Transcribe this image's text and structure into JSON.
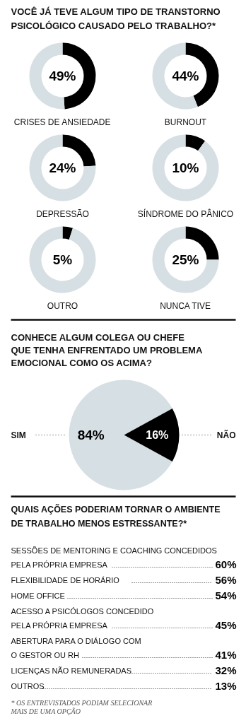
{
  "chart_data": [
    {
      "type": "other",
      "title": "VOCÊ JÁ TEVE ALGUM TIPO DE TRANSTORNO\nPSICOLÓGICO CAUSADO PELO TRABALHO?*"
    },
    {
      "type": "donut",
      "title": "CRISES DE ANSIEDADE",
      "categories": [
        null,
        null
      ],
      "values": [
        49,
        51
      ],
      "colors": [
        "#000000",
        "#d6dfe3"
      ],
      "annotations": [
        "49%"
      ]
    },
    {
      "type": "donut",
      "title": "BURNOUT",
      "categories": [
        null,
        null
      ],
      "values": [
        44,
        56
      ],
      "colors": [
        "#000000",
        "#d6dfe3"
      ],
      "annotations": [
        "44%"
      ]
    },
    {
      "type": "donut",
      "title": "DEPRESSÃO",
      "categories": [
        null,
        null
      ],
      "values": [
        24,
        76
      ],
      "colors": [
        "#000000",
        "#d6dfe3"
      ],
      "annotations": [
        "24%"
      ]
    },
    {
      "type": "donut",
      "title": "SÍNDROME DO PÂNICO",
      "categories": [
        null,
        null
      ],
      "values": [
        10,
        90
      ],
      "colors": [
        "#000000",
        "#d6dfe3"
      ],
      "annotations": [
        "10%"
      ]
    },
    {
      "type": "donut",
      "title": "OUTRO",
      "categories": [
        null,
        null
      ],
      "values": [
        5,
        95
      ],
      "colors": [
        "#000000",
        "#d6dfe3"
      ],
      "annotations": [
        "5%"
      ]
    },
    {
      "type": "donut",
      "title": "NUNCA TIVE",
      "categories": [
        null,
        null
      ],
      "values": [
        25,
        75
      ],
      "colors": [
        "#000000",
        "#d6dfe3"
      ],
      "annotations": [
        "25%"
      ]
    },
    {
      "type": "pie",
      "title": "CONHECE ALGUM COLEGA OU CHEFE\nQUE TENHA ENFRENTADO UM PROBLEMA\nEMOCIONAL COMO OS ACIMA?",
      "categories": [
        "SIM",
        "NÃO"
      ],
      "values": [
        84,
        16
      ],
      "colors": [
        "#d6dfe3",
        "#000000"
      ],
      "value_labels": [
        "84%",
        "16%"
      ]
    },
    {
      "type": "other",
      "title": "QUAIS AÇÕES PODERIAM TORNAR O AMBIENTE\nDE TRABALHO MENOS ESTRESSANTE?*",
      "categories": [
        "SESSÕES DE MENTORING E COACHING CONCEDIDOS\nPELA PRÓPRIA EMPRESA",
        "FLEXIBILIDADE DE HORÁRIO",
        "HOME OFFICE",
        "ACESSO A PSICÓLOGOS CONCEDIDO\nPELA PRÓPRIA EMPRESA",
        "ABERTURA PARA O DIÁLOGO COM\nO GESTOR OU RH",
        "LICENÇAS NÃO REMUNERADAS",
        "OUTROS"
      ],
      "value_labels": [
        "60%",
        "56%",
        "54%",
        "45%",
        "41%",
        "32%",
        "13%"
      ],
      "annotations": [
        "* OS ENTREVISTADOS PODIAM SELECIONAR\nMAIS DE UMA OPÇÃO"
      ]
    }
  ]
}
